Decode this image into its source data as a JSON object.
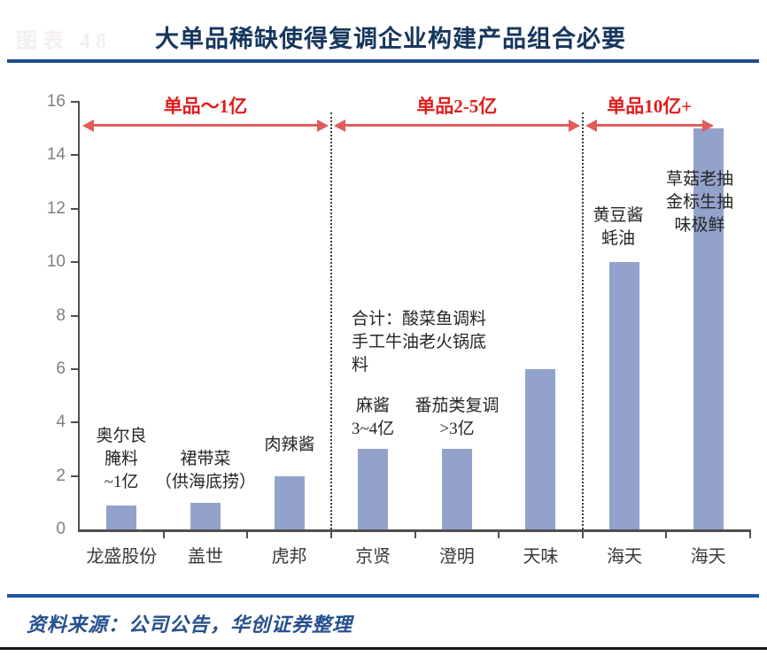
{
  "page": {
    "faint_caption": "图表 48",
    "title": "大单品稀缺使得复调企业构建产品组合必要",
    "source": "资料来源：公司公告，华创证券整理"
  },
  "colors": {
    "title": "#17365d",
    "title_rule": "#1e4e91",
    "footer_rule": "#2056a4",
    "bar_fill": "#93a2cb",
    "section_label": "#e01d1d",
    "arrow": "#e25c5c",
    "axis_label_gray": "#7f7f7f"
  },
  "chart_data": {
    "type": "bar",
    "title": "大单品稀缺使得复调企业构建产品组合必要",
    "categories": [
      "龙盛股份",
      "盖世",
      "虎邦",
      "京贤",
      "澄明",
      "天味",
      "海天",
      "海天"
    ],
    "values": [
      0.9,
      1,
      2,
      3,
      3,
      6,
      10,
      15
    ],
    "bar_annotations": [
      [
        "奥尔良",
        "腌料",
        "~1亿"
      ],
      [
        "裙带菜",
        "（供海底捞）"
      ],
      [
        "肉辣酱"
      ],
      [
        "麻酱",
        "3~4亿"
      ],
      [
        "番茄类复调",
        ">3亿"
      ],
      [
        "合计：酸菜鱼调料",
        "手工牛油老火锅底",
        "料"
      ],
      [
        "黄豆酱",
        "蚝油"
      ],
      [
        "草菇老抽",
        "金标生抽",
        "味极鲜"
      ]
    ],
    "sections": [
      {
        "label": "单品～1亿",
        "from": 0,
        "to": 3
      },
      {
        "label": "单品2-5亿",
        "from": 3,
        "to": 6
      },
      {
        "label": "单品10亿+",
        "from": 6,
        "to": 8
      }
    ],
    "xlabel": "",
    "ylabel": "",
    "ylim": [
      0,
      16
    ],
    "yticks": [
      0,
      2,
      4,
      6,
      8,
      10,
      12,
      14,
      16
    ],
    "grid": false,
    "legend": false,
    "source": "资料来源：公司公告，华创证券整理"
  }
}
